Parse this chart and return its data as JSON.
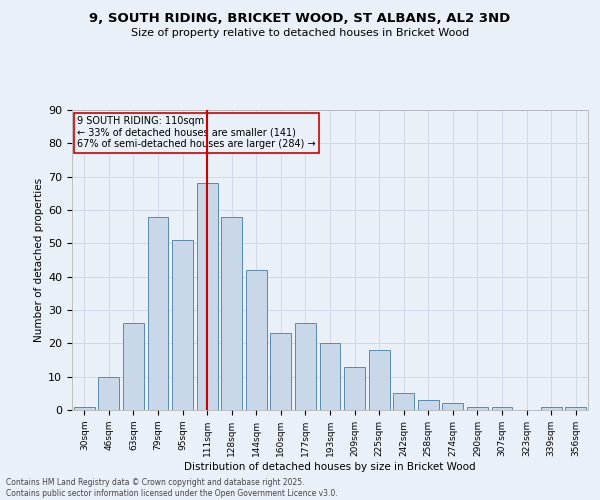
{
  "title": "9, SOUTH RIDING, BRICKET WOOD, ST ALBANS, AL2 3ND",
  "subtitle": "Size of property relative to detached houses in Bricket Wood",
  "xlabel": "Distribution of detached houses by size in Bricket Wood",
  "ylabel": "Number of detached properties",
  "bin_labels": [
    "30sqm",
    "46sqm",
    "63sqm",
    "79sqm",
    "95sqm",
    "111sqm",
    "128sqm",
    "144sqm",
    "160sqm",
    "177sqm",
    "193sqm",
    "209sqm",
    "225sqm",
    "242sqm",
    "258sqm",
    "274sqm",
    "290sqm",
    "307sqm",
    "323sqm",
    "339sqm",
    "356sqm"
  ],
  "bar_heights": [
    1,
    10,
    26,
    58,
    51,
    68,
    58,
    42,
    23,
    26,
    20,
    13,
    18,
    5,
    3,
    2,
    1,
    1,
    0,
    1,
    1
  ],
  "bar_color": "#c8d8e8",
  "bar_edge_color": "#5a8ab0",
  "grid_color": "#d0d8e8",
  "bg_color": "#eaf0f8",
  "ref_line_x": 5,
  "ref_line_color": "#cc0000",
  "annotation_text": "9 SOUTH RIDING: 110sqm\n← 33% of detached houses are smaller (141)\n67% of semi-detached houses are larger (284) →",
  "annotation_box_color": "#cc0000",
  "footer_line1": "Contains HM Land Registry data © Crown copyright and database right 2025.",
  "footer_line2": "Contains public sector information licensed under the Open Government Licence v3.0.",
  "ylim": [
    0,
    90
  ],
  "yticks": [
    0,
    10,
    20,
    30,
    40,
    50,
    60,
    70,
    80,
    90
  ]
}
